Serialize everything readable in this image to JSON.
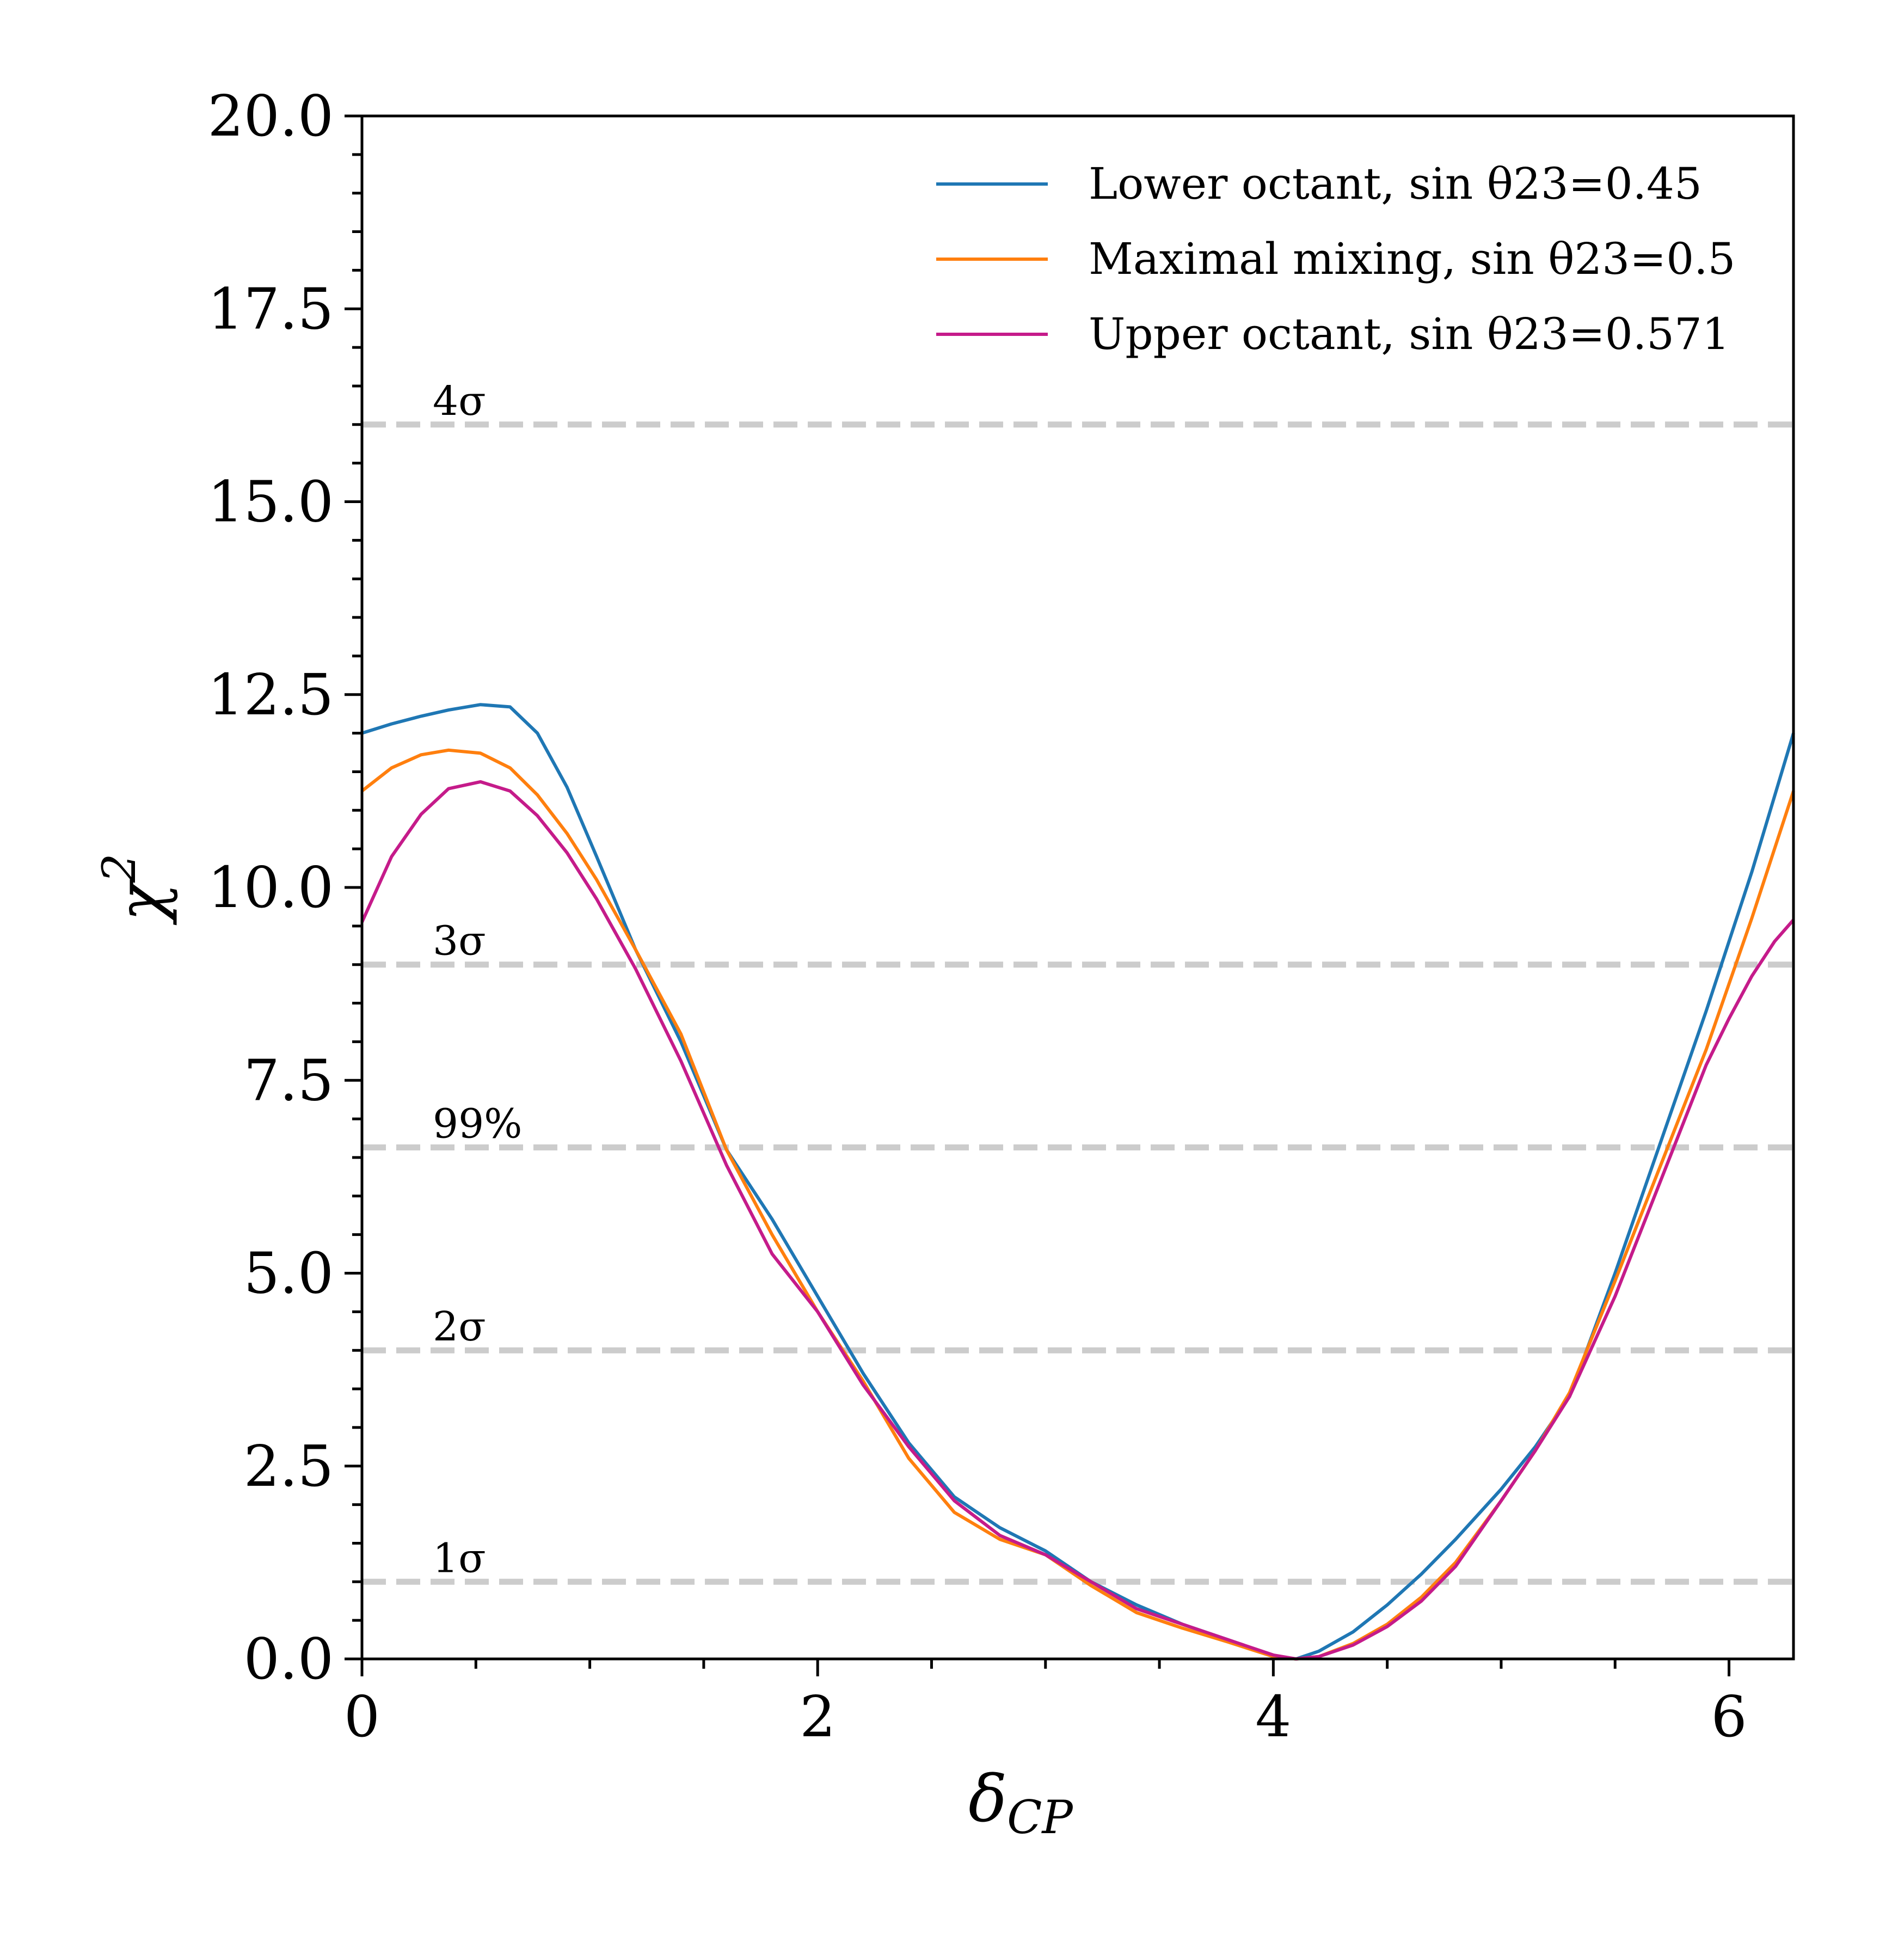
{
  "chart_data": {
    "type": "line",
    "title": "",
    "xlabel": "δ",
    "xlabel_sub": "CP",
    "ylabel": "χ",
    "ylabel_sup": "2",
    "xlim": [
      0,
      6.283
    ],
    "ylim": [
      0,
      20
    ],
    "x_ticks": [
      0,
      2,
      4,
      6
    ],
    "x_tick_labels": [
      "0",
      "2",
      "4",
      "6"
    ],
    "x_minor_step": 0.5,
    "y_ticks": [
      0,
      2.5,
      5,
      7.5,
      10,
      12.5,
      15,
      17.5,
      20
    ],
    "y_tick_labels": [
      "0.0",
      "2.5",
      "5.0",
      "7.5",
      "10.0",
      "12.5",
      "15.0",
      "17.5",
      "20.0"
    ],
    "y_minor_step": 0.5,
    "legend_position": "top-right",
    "reference_lines": [
      {
        "label": "1σ",
        "value": 1.0
      },
      {
        "label": "2σ",
        "value": 4.0
      },
      {
        "label": "99%",
        "value": 6.63
      },
      {
        "label": "3σ",
        "value": 9.0
      },
      {
        "label": "4σ",
        "value": 16.0
      }
    ],
    "series": [
      {
        "name": "Lower octant, sin θ23=0.45",
        "color": "#1f77b4",
        "x": [
          0,
          0.13,
          0.26,
          0.38,
          0.52,
          0.65,
          0.77,
          0.9,
          1.03,
          1.2,
          1.4,
          1.6,
          1.8,
          2.0,
          2.2,
          2.4,
          2.6,
          2.8,
          3.0,
          3.2,
          3.4,
          3.6,
          3.8,
          4.0,
          4.1,
          4.2,
          4.35,
          4.5,
          4.65,
          4.8,
          5.0,
          5.15,
          5.3,
          5.5,
          5.7,
          5.9,
          6.1,
          6.283
        ],
        "y": [
          12.0,
          12.12,
          12.22,
          12.3,
          12.37,
          12.34,
          12.0,
          11.3,
          10.4,
          9.2,
          8.0,
          6.6,
          5.7,
          4.7,
          3.7,
          2.8,
          2.1,
          1.7,
          1.4,
          1.0,
          0.7,
          0.45,
          0.25,
          0.04,
          0.0,
          0.1,
          0.35,
          0.7,
          1.1,
          1.55,
          2.2,
          2.75,
          3.4,
          5.0,
          6.7,
          8.4,
          10.2,
          12.0
        ]
      },
      {
        "name": "Maximal mixing, sin θ23=0.5",
        "color": "#ff7f0e",
        "x": [
          0,
          0.13,
          0.26,
          0.38,
          0.52,
          0.65,
          0.77,
          0.9,
          1.03,
          1.2,
          1.4,
          1.6,
          1.8,
          2.0,
          2.2,
          2.4,
          2.6,
          2.8,
          3.0,
          3.2,
          3.4,
          3.6,
          3.8,
          4.0,
          4.1,
          4.2,
          4.35,
          4.5,
          4.65,
          4.8,
          5.0,
          5.15,
          5.3,
          5.5,
          5.7,
          5.9,
          6.1,
          6.283
        ],
        "y": [
          11.25,
          11.55,
          11.72,
          11.78,
          11.74,
          11.55,
          11.2,
          10.7,
          10.1,
          9.2,
          8.1,
          6.6,
          5.5,
          4.5,
          3.6,
          2.6,
          1.9,
          1.55,
          1.35,
          0.95,
          0.6,
          0.4,
          0.22,
          0.03,
          0.0,
          0.03,
          0.2,
          0.45,
          0.8,
          1.25,
          2.05,
          2.7,
          3.45,
          4.9,
          6.4,
          7.9,
          9.6,
          11.25
        ]
      },
      {
        "name": "Upper octant, sin θ23=0.571",
        "color": "#c51b8a",
        "x": [
          0,
          0.13,
          0.26,
          0.38,
          0.52,
          0.65,
          0.77,
          0.9,
          1.03,
          1.2,
          1.4,
          1.6,
          1.8,
          2.0,
          2.2,
          2.4,
          2.6,
          2.8,
          3.0,
          3.2,
          3.4,
          3.6,
          3.8,
          4.0,
          4.1,
          4.2,
          4.35,
          4.5,
          4.65,
          4.8,
          5.0,
          5.15,
          5.3,
          5.5,
          5.7,
          5.9,
          6.0,
          6.1,
          6.2,
          6.283
        ],
        "y": [
          9.55,
          10.4,
          10.95,
          11.28,
          11.37,
          11.25,
          10.93,
          10.45,
          9.85,
          8.95,
          7.75,
          6.4,
          5.25,
          4.5,
          3.55,
          2.75,
          2.05,
          1.6,
          1.35,
          1.0,
          0.65,
          0.45,
          0.25,
          0.05,
          0.0,
          0.03,
          0.18,
          0.42,
          0.75,
          1.2,
          2.05,
          2.7,
          3.4,
          4.7,
          6.2,
          7.7,
          8.3,
          8.85,
          9.3,
          9.58
        ]
      }
    ]
  }
}
